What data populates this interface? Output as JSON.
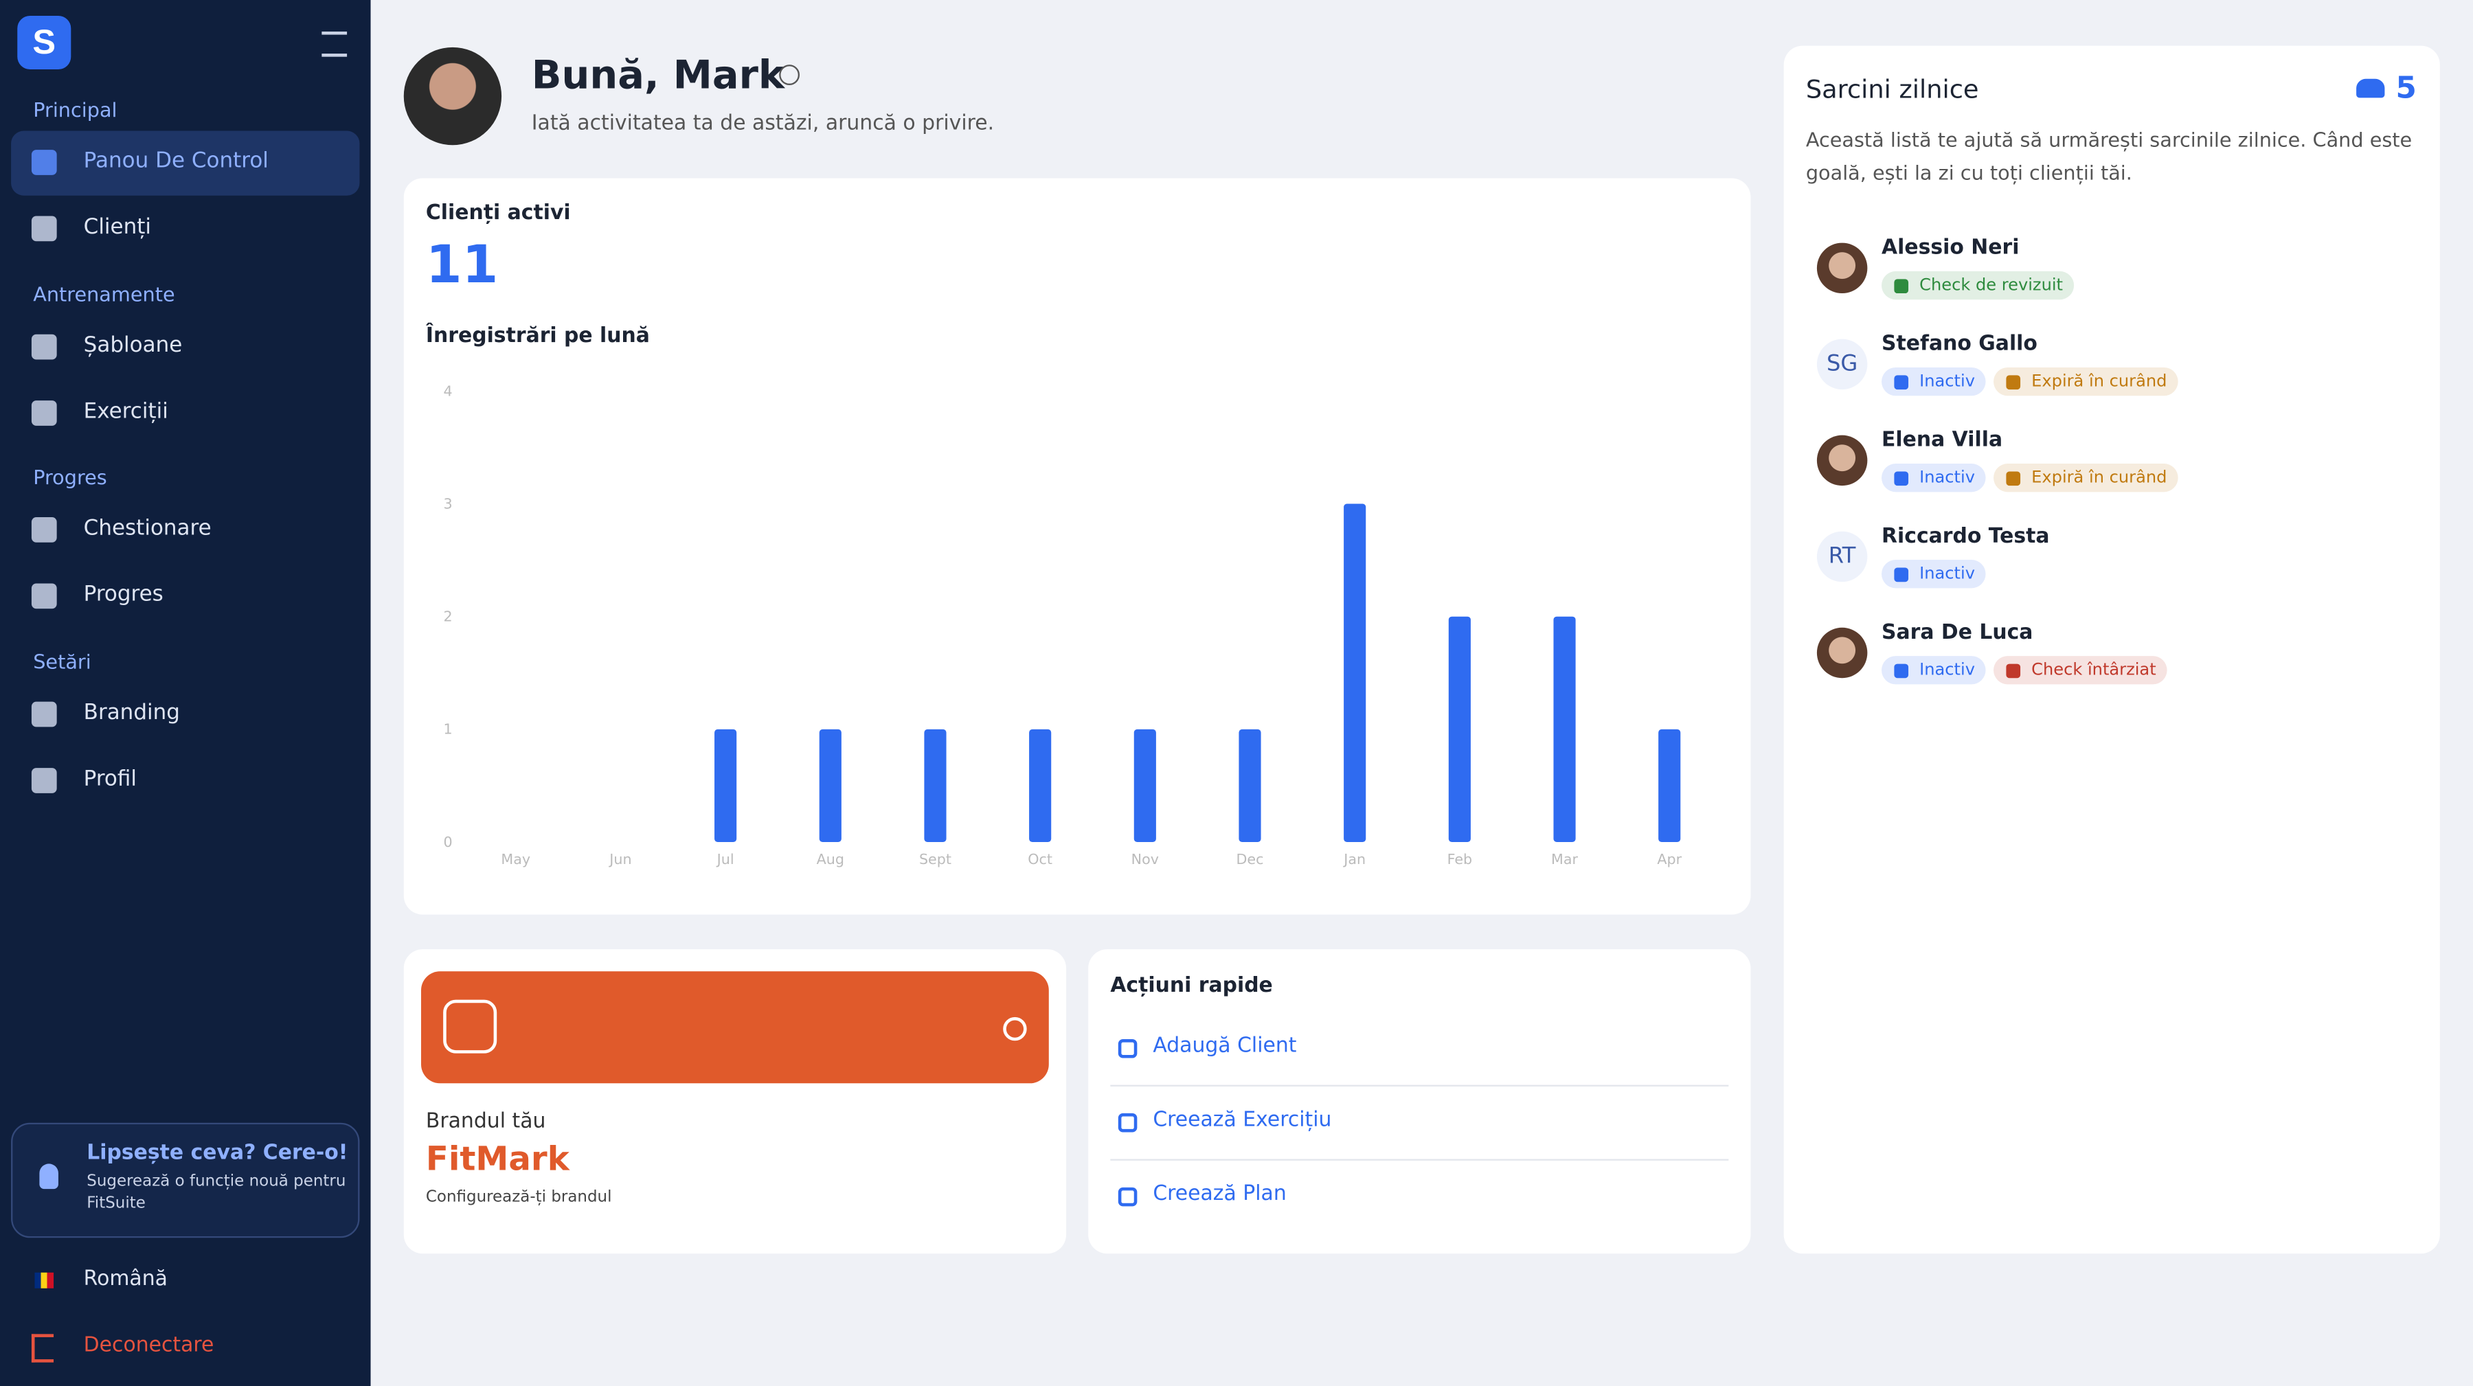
{
  "sidebar": {
    "sections": [
      {
        "title": "Principal",
        "items": [
          "Panou De Control",
          "Clienți"
        ]
      },
      {
        "title": "Antrenamente",
        "items": [
          "Șabloane",
          "Exerciții"
        ]
      },
      {
        "title": "Progres",
        "items": [
          "Chestionare",
          "Progres"
        ]
      },
      {
        "title": "Setări",
        "items": [
          "Branding",
          "Profil"
        ]
      }
    ],
    "promo": {
      "title": "Lipsește ceva? Cere-o!",
      "text": "Sugerează o funcție nouă pentru FitSuite"
    },
    "language": "Română",
    "logout": "Deconectare"
  },
  "header": {
    "greeting": "Bună, Mark",
    "subtitle": "Iată activitatea ta de astăzi, aruncă o privire."
  },
  "active_clients": {
    "label": "Clienți activi",
    "value": 11
  },
  "chart": {
    "type": "bar",
    "title": "Înregistrări pe lună",
    "categories": [
      "May",
      "Jun",
      "Jul",
      "Aug",
      "Sept",
      "Oct",
      "Nov",
      "Dec",
      "Jan",
      "Feb",
      "Mar",
      "Apr"
    ],
    "values": [
      0,
      0,
      1,
      1,
      1,
      1,
      1,
      1,
      3,
      2,
      2,
      1
    ],
    "color": "#2f6bf0",
    "ylim": [
      0,
      4
    ],
    "yticks": [
      0,
      1,
      2,
      3,
      4
    ]
  },
  "brand": {
    "label": "Brandul tău",
    "name": "FitMark",
    "link": "Configurează-ți brandul"
  },
  "quick_actions": {
    "title": "Acțiuni rapide",
    "items": [
      "Adaugă Client",
      "Creează Exercițiu",
      "Creează Plan"
    ]
  },
  "tasks": {
    "title": "Sarcini zilnice",
    "count": 5,
    "description": "Această listă te ajută să urmărești sarcinile zilnice. Când este goală, ești la zi cu toți clienții tăi.",
    "clients": [
      {
        "name": "Alessio Neri",
        "tags": [
          {
            "label": "Check de revizuit",
            "color": "#2e8b3e"
          }
        ]
      },
      {
        "name": "Stefano Gallo",
        "initials": "SG",
        "tags": [
          {
            "label": "Inactiv",
            "color": "#2f6bf0"
          },
          {
            "label": "Expiră în curând",
            "color": "#c07a10"
          }
        ]
      },
      {
        "name": "Elena Villa",
        "tags": [
          {
            "label": "Inactiv",
            "color": "#2f6bf0"
          },
          {
            "label": "Expiră în curând",
            "color": "#c07a10"
          }
        ]
      },
      {
        "name": "Riccardo Testa",
        "initials": "RT",
        "tags": [
          {
            "label": "Inactiv",
            "color": "#2f6bf0"
          }
        ]
      },
      {
        "name": "Sara De Luca",
        "tags": [
          {
            "label": "Inactiv",
            "color": "#2f6bf0"
          },
          {
            "label": "Check întârziat",
            "color": "#c0392b"
          }
        ]
      }
    ]
  }
}
